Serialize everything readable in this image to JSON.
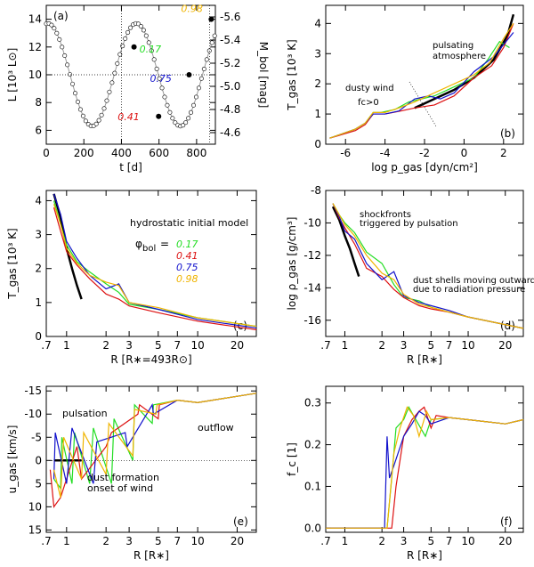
{
  "colors": {
    "green": "#22dd22",
    "red": "#dd1111",
    "blue": "#1111cc",
    "orange": "#f0b400",
    "black": "#000000"
  },
  "phase_labels": [
    "0.17",
    "0.41",
    "0.75",
    "0.98"
  ],
  "chart_data": [
    {
      "panel": "(a)",
      "type": "line",
      "xlabel": "t   [d]",
      "ylabel": "L   [10³ L⊙]",
      "y2label": "M_bol   [mag]",
      "xlim": [
        0,
        900
      ],
      "ylim": [
        5,
        15
      ],
      "y2lim": [
        -5.7,
        -4.5
      ],
      "xticks": [
        0,
        200,
        400,
        600,
        800
      ],
      "yticks": [
        6,
        8,
        10,
        12,
        14
      ],
      "y2ticks": [
        -5.6,
        -5.4,
        -5.2,
        -5.0,
        -4.8,
        -4.6
      ],
      "period_days": 470,
      "mean_L": 10,
      "amplitude_L": 3.7,
      "highlighted_points": [
        {
          "t": 467,
          "L": 12,
          "phase": "0.17",
          "color": "green"
        },
        {
          "t": 598,
          "L": 7,
          "phase": "0.41",
          "color": "red"
        },
        {
          "t": 760,
          "L": 10,
          "phase": "0.75",
          "color": "blue"
        },
        {
          "t": 878,
          "L": 14,
          "phase": "0.98",
          "color": "orange"
        }
      ]
    },
    {
      "panel": "(b)",
      "type": "line",
      "xlabel": "log p_gas   [dyn/cm²]",
      "ylabel": "T_gas   [10³ K]",
      "xlim": [
        -7,
        3
      ],
      "ylim": [
        0,
        4.6
      ],
      "xticks": [
        -6,
        -4,
        -2,
        0,
        2
      ],
      "yticks": [
        0,
        1,
        2,
        3,
        4
      ],
      "annotations": [
        "pulsating",
        "atmosphere",
        "dusty wind",
        "fc>0"
      ],
      "series": [
        {
          "name": "initial",
          "color": "black",
          "x": [
            -2.5,
            -1.5,
            -0.5,
            0.5,
            1.5,
            2.2,
            2.5
          ],
          "y": [
            1.2,
            1.5,
            1.8,
            2.2,
            2.8,
            3.6,
            4.3
          ]
        },
        {
          "name": "0.17",
          "color": "green",
          "x": [
            -6.8,
            -5.5,
            -5,
            -4.6,
            -4.2,
            -3.5,
            -2.8,
            -1.5,
            -0.5,
            0.5,
            1.2,
            1.8,
            2.3
          ],
          "y": [
            0.2,
            0.5,
            0.7,
            1.05,
            1.05,
            1.15,
            1.4,
            1.6,
            1.9,
            2.2,
            2.8,
            3.4,
            3.2
          ]
        },
        {
          "name": "0.41",
          "color": "red",
          "x": [
            -6.8,
            -5.5,
            -5,
            -4.6,
            -4,
            -3.2,
            -2.5,
            -1.5,
            -0.5,
            0.5,
            1.4,
            2,
            2.5
          ],
          "y": [
            0.2,
            0.45,
            0.65,
            1.0,
            1.0,
            1.1,
            1.2,
            1.3,
            1.6,
            2.2,
            2.6,
            3.2,
            4.0
          ]
        },
        {
          "name": "0.75",
          "color": "blue",
          "x": [
            -6.8,
            -5.5,
            -5,
            -4.6,
            -4,
            -3.3,
            -2.5,
            -1.8,
            -1.2,
            -0.5,
            0.5,
            1.5,
            2.5
          ],
          "y": [
            0.2,
            0.5,
            0.7,
            1.0,
            1.0,
            1.1,
            1.5,
            1.6,
            1.5,
            1.7,
            2.4,
            2.9,
            3.7
          ]
        },
        {
          "name": "0.98",
          "color": "orange",
          "x": [
            -6.8,
            -5.5,
            -5,
            -4.6,
            -4,
            -3.3,
            -2.5,
            -1.5,
            -0.5,
            0.5,
            1.3,
            2,
            2.5
          ],
          "y": [
            0.2,
            0.5,
            0.7,
            1.05,
            1.05,
            1.2,
            1.4,
            1.7,
            2.0,
            2.3,
            2.7,
            3.5,
            4.0
          ]
        }
      ]
    },
    {
      "panel": "(c)",
      "type": "line",
      "xlabel": "R   [R∗=493R⊙]",
      "ylabel": "T_gas   [10³ K]",
      "xlim": [
        0.7,
        28
      ],
      "ylim": [
        0,
        4.3
      ],
      "xscale": "log",
      "xticks": [
        0.7,
        1,
        2,
        3,
        5,
        7,
        10,
        20
      ],
      "xtick_labels": [
        ".7",
        "1",
        "2",
        "3",
        "5",
        "7",
        "10",
        "20"
      ],
      "yticks": [
        0,
        1,
        2,
        3,
        4
      ],
      "legend_title": "hydrostatic initial model",
      "phi_label": "φ",
      "phi_sub": "bol",
      "phi_eq": "=",
      "series": [
        {
          "name": "initial",
          "color": "black",
          "x": [
            0.8,
            0.9,
            1.0,
            1.1,
            1.2,
            1.3
          ],
          "y": [
            4.2,
            3.5,
            2.6,
            2.0,
            1.5,
            1.1
          ]
        },
        {
          "name": "0.17",
          "color": "green",
          "x": [
            0.8,
            0.9,
            1.0,
            1.2,
            1.5,
            2,
            2.5,
            3,
            5,
            10,
            28
          ],
          "y": [
            4.0,
            3.3,
            2.7,
            2.2,
            1.9,
            1.55,
            1.3,
            0.95,
            0.8,
            0.55,
            0.3
          ]
        },
        {
          "name": "0.41",
          "color": "red",
          "x": [
            0.8,
            0.9,
            1.0,
            1.2,
            1.5,
            2,
            2.5,
            3,
            5,
            10,
            28
          ],
          "y": [
            3.8,
            3.1,
            2.5,
            2.1,
            1.7,
            1.25,
            1.1,
            0.9,
            0.7,
            0.45,
            0.2
          ]
        },
        {
          "name": "0.75",
          "color": "blue",
          "x": [
            0.8,
            0.9,
            1.0,
            1.2,
            1.5,
            2,
            2.5,
            3,
            5,
            10,
            28
          ],
          "y": [
            4.2,
            3.6,
            2.8,
            2.3,
            1.8,
            1.4,
            1.55,
            1.0,
            0.8,
            0.5,
            0.25
          ]
        },
        {
          "name": "0.98",
          "color": "orange",
          "x": [
            0.8,
            0.9,
            1.0,
            1.2,
            1.5,
            2,
            2.5,
            3,
            5,
            10,
            28
          ],
          "y": [
            3.9,
            3.3,
            2.6,
            2.15,
            1.8,
            1.6,
            1.5,
            1.0,
            0.85,
            0.55,
            0.3
          ]
        }
      ]
    },
    {
      "panel": "(d)",
      "type": "line",
      "xlabel": "R   [R∗]",
      "ylabel": "log ρ_gas   [g/cm³]",
      "xlim": [
        0.7,
        28
      ],
      "ylim": [
        -17,
        -8
      ],
      "xscale": "log",
      "xticks": [
        0.7,
        1,
        2,
        3,
        5,
        7,
        10,
        20
      ],
      "xtick_labels": [
        ".7",
        "1",
        "2",
        "3",
        "5",
        "7",
        "10",
        "20"
      ],
      "yticks": [
        -16,
        -14,
        -12,
        -10,
        -8
      ],
      "annotations": [
        "shockfronts",
        "triggered by pulsation",
        "dust shells moving outwards",
        "due to radiation pressure"
      ],
      "series": [
        {
          "name": "initial",
          "color": "black",
          "x": [
            0.8,
            0.9,
            1.0,
            1.1,
            1.2,
            1.3
          ],
          "y": [
            -9,
            -9.8,
            -10.8,
            -11.6,
            -12.5,
            -13.3
          ]
        },
        {
          "name": "0.17",
          "color": "green",
          "x": [
            0.8,
            0.9,
            1.0,
            1.2,
            1.5,
            2,
            2.5,
            3,
            4,
            5,
            7,
            10,
            28
          ],
          "y": [
            -8.8,
            -9.5,
            -10,
            -10.6,
            -11.8,
            -12.5,
            -13.8,
            -14.6,
            -14.8,
            -15.2,
            -15.5,
            -15.8,
            -16.5
          ]
        },
        {
          "name": "0.41",
          "color": "red",
          "x": [
            0.8,
            0.9,
            1.0,
            1.2,
            1.5,
            2,
            2.5,
            3,
            4,
            5,
            7,
            10,
            28
          ],
          "y": [
            -8.8,
            -9.7,
            -10.3,
            -11.3,
            -12.8,
            -13.3,
            -14.1,
            -14.6,
            -15.1,
            -15.3,
            -15.5,
            -15.8,
            -16.5
          ]
        },
        {
          "name": "0.75",
          "color": "blue",
          "x": [
            0.8,
            0.9,
            1.0,
            1.2,
            1.5,
            2,
            2.5,
            3,
            4,
            5,
            7,
            10,
            28
          ],
          "y": [
            -8.8,
            -9.6,
            -10.5,
            -11.0,
            -12.5,
            -13.5,
            -13.0,
            -14.5,
            -14.9,
            -15.1,
            -15.4,
            -15.8,
            -16.5
          ]
        },
        {
          "name": "0.98",
          "color": "orange",
          "x": [
            0.8,
            0.9,
            1.0,
            1.2,
            1.5,
            2,
            2.5,
            3,
            4,
            5,
            7,
            10,
            28
          ],
          "y": [
            -8.8,
            -9.5,
            -10.1,
            -10.8,
            -12,
            -13.1,
            -13.5,
            -14.4,
            -15.0,
            -15.2,
            -15.5,
            -15.8,
            -16.5
          ]
        }
      ]
    },
    {
      "panel": "(e)",
      "type": "line",
      "xlabel": "R   [R∗]",
      "ylabel": "u_gas   [km/s]",
      "xlim": [
        0.7,
        28
      ],
      "ylim": [
        15.5,
        -16
      ],
      "xscale": "log",
      "xticks": [
        0.7,
        1,
        2,
        3,
        5,
        7,
        10,
        20
      ],
      "xtick_labels": [
        ".7",
        "1",
        "2",
        "3",
        "5",
        "7",
        "10",
        "20"
      ],
      "yticks": [
        15,
        10,
        5,
        0,
        -5,
        -10,
        -15
      ],
      "ytick_labels": [
        "15",
        "10",
        "5",
        "0",
        "-5",
        "-10",
        "-15"
      ],
      "annotations": [
        "pulsation",
        "outflow",
        "dust formation",
        "onset of wind"
      ],
      "series": [
        {
          "name": "initial",
          "color": "black",
          "x": [
            0.8,
            1.3
          ],
          "y": [
            0,
            0
          ]
        },
        {
          "name": "0.17",
          "color": "green",
          "x": [
            0.8,
            0.9,
            0.92,
            1.1,
            1.15,
            1.5,
            1.6,
            2.2,
            2.3,
            3.2,
            3.3,
            4.5,
            4.6,
            7,
            10,
            28
          ],
          "y": [
            4,
            6,
            -5,
            5,
            -6,
            5,
            -7,
            5,
            -9,
            0,
            -12,
            -8,
            -12,
            -13,
            -12.5,
            -14.5
          ]
        },
        {
          "name": "0.41",
          "color": "red",
          "x": [
            0.75,
            0.8,
            0.9,
            1.2,
            1.3,
            2,
            2.2,
            3.5,
            3.6,
            5,
            5.1,
            7,
            10,
            28
          ],
          "y": [
            2,
            10,
            8,
            -3,
            4,
            -3,
            -6,
            -10,
            -12,
            -9,
            -12,
            -13,
            -12.5,
            -14.5
          ]
        },
        {
          "name": "0.75",
          "color": "blue",
          "x": [
            0.8,
            0.82,
            1.0,
            1.1,
            1.6,
            1.7,
            2.8,
            2.9,
            4.5,
            4.6,
            7,
            10,
            28
          ],
          "y": [
            4,
            -6,
            5,
            -7,
            5,
            -4,
            -6,
            -3,
            -12,
            -10,
            -13,
            -12.5,
            -14.5
          ]
        },
        {
          "name": "0.98",
          "color": "orange",
          "x": [
            0.8,
            0.9,
            0.95,
            1.3,
            1.35,
            2,
            2.1,
            3.2,
            3.3,
            4.8,
            4.9,
            7,
            10,
            28
          ],
          "y": [
            2,
            8,
            -5,
            4,
            -6,
            3,
            -8,
            -1,
            -11,
            -10,
            -12,
            -13,
            -12.5,
            -14.5
          ]
        }
      ]
    },
    {
      "panel": "(f)",
      "type": "line",
      "xlabel": "R   [R∗]",
      "ylabel": "f_c   [1]",
      "xlim": [
        0.7,
        28
      ],
      "ylim": [
        -0.01,
        0.34
      ],
      "xscale": "log",
      "xticks": [
        0.7,
        1,
        2,
        3,
        5,
        7,
        10,
        20
      ],
      "xtick_labels": [
        ".7",
        "1",
        "2",
        "3",
        "5",
        "7",
        "10",
        "20"
      ],
      "yticks": [
        0,
        0.1,
        0.2,
        0.3
      ],
      "ytick_labels": [
        "0.0",
        "0.1",
        "0.2",
        "0.3"
      ],
      "series": [
        {
          "name": "0.17",
          "color": "green",
          "x": [
            0.7,
            2.2,
            2.4,
            2.6,
            3.0,
            3.3,
            3.6,
            4.5,
            5,
            7,
            10,
            20,
            28
          ],
          "y": [
            0,
            0,
            0.12,
            0.24,
            0.26,
            0.29,
            0.27,
            0.22,
            0.26,
            0.265,
            0.26,
            0.25,
            0.26
          ]
        },
        {
          "name": "0.41",
          "color": "red",
          "x": [
            0.7,
            2.4,
            2.6,
            3,
            3.5,
            4,
            4.4,
            5,
            5.5,
            7,
            10,
            20,
            28
          ],
          "y": [
            0,
            0,
            0.1,
            0.22,
            0.26,
            0.28,
            0.29,
            0.24,
            0.27,
            0.265,
            0.26,
            0.25,
            0.26
          ]
        },
        {
          "name": "0.75",
          "color": "blue",
          "x": [
            0.7,
            2.1,
            2.2,
            2.3,
            2.5,
            3,
            3.5,
            4,
            4.5,
            5,
            7,
            10,
            20,
            28
          ],
          "y": [
            0,
            0,
            0.22,
            0.12,
            0.15,
            0.22,
            0.25,
            0.28,
            0.27,
            0.25,
            0.265,
            0.26,
            0.25,
            0.26
          ]
        },
        {
          "name": "0.98",
          "color": "orange",
          "x": [
            0.7,
            2.2,
            2.5,
            2.8,
            3.2,
            3.6,
            4,
            4.6,
            5,
            7,
            10,
            20,
            28
          ],
          "y": [
            0,
            0,
            0.18,
            0.24,
            0.29,
            0.27,
            0.22,
            0.28,
            0.26,
            0.265,
            0.26,
            0.25,
            0.26
          ]
        }
      ]
    }
  ]
}
